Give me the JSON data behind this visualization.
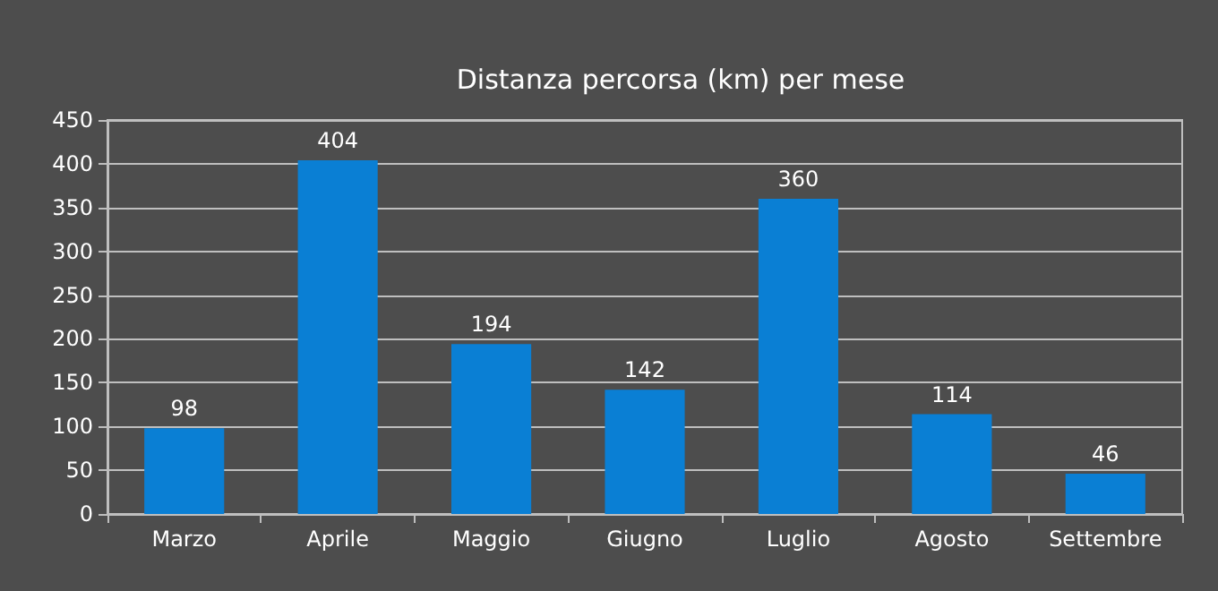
{
  "chart_data": {
    "type": "bar",
    "title": "Distanza percorsa (km) per mese",
    "categories": [
      "Marzo",
      "Aprile",
      "Maggio",
      "Giugno",
      "Luglio",
      "Agosto",
      "Settembre"
    ],
    "values": [
      98,
      404,
      194,
      142,
      360,
      114,
      46
    ],
    "color": "#0a7fd4",
    "ylim": [
      0,
      450
    ],
    "yticks": [
      0,
      50,
      100,
      150,
      200,
      250,
      300,
      350,
      400,
      450
    ],
    "grid": "y",
    "data_labels": true
  }
}
